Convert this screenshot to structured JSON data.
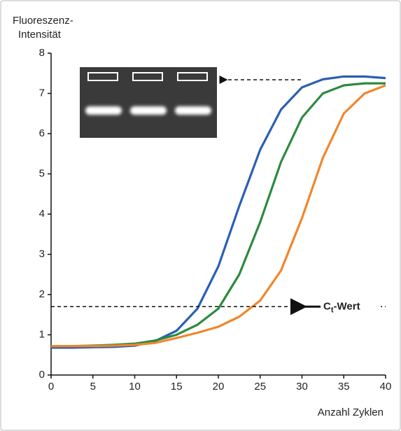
{
  "chart_data": {
    "type": "line",
    "y_label_lines": [
      "Fluoreszenz-",
      "Intensität"
    ],
    "x_label": "Anzahl Zyklen",
    "x": [
      0,
      2.5,
      5,
      7.5,
      10,
      12.5,
      15,
      17.5,
      20,
      22.5,
      25,
      27.5,
      30,
      32.5,
      35,
      37.5,
      40
    ],
    "series": [
      {
        "color": "#2b5fb4",
        "values": [
          0.68,
          0.68,
          0.69,
          0.7,
          0.73,
          0.85,
          1.1,
          1.65,
          2.7,
          4.2,
          5.6,
          6.6,
          7.15,
          7.35,
          7.42,
          7.42,
          7.38
        ]
      },
      {
        "color": "#2c8a3f",
        "values": [
          0.72,
          0.72,
          0.73,
          0.75,
          0.78,
          0.86,
          1.0,
          1.25,
          1.65,
          2.5,
          3.8,
          5.3,
          6.4,
          7.0,
          7.2,
          7.25,
          7.25
        ]
      },
      {
        "color": "#f0862c",
        "values": [
          0.72,
          0.72,
          0.72,
          0.73,
          0.75,
          0.8,
          0.92,
          1.05,
          1.2,
          1.45,
          1.85,
          2.6,
          3.9,
          5.4,
          6.5,
          7.0,
          7.2
        ]
      }
    ],
    "threshold": 1.7,
    "threshold_label": {
      "main": "C",
      "sub": "t",
      "rest": "-Wert"
    },
    "plateau_marker": 7.34,
    "xlim": [
      0,
      40
    ],
    "xticks": [
      0,
      5,
      10,
      15,
      20,
      25,
      30,
      35,
      40
    ],
    "ylim": [
      0,
      8
    ],
    "yticks": [
      0,
      1,
      2,
      3,
      4,
      5,
      6,
      7,
      8
    ]
  }
}
